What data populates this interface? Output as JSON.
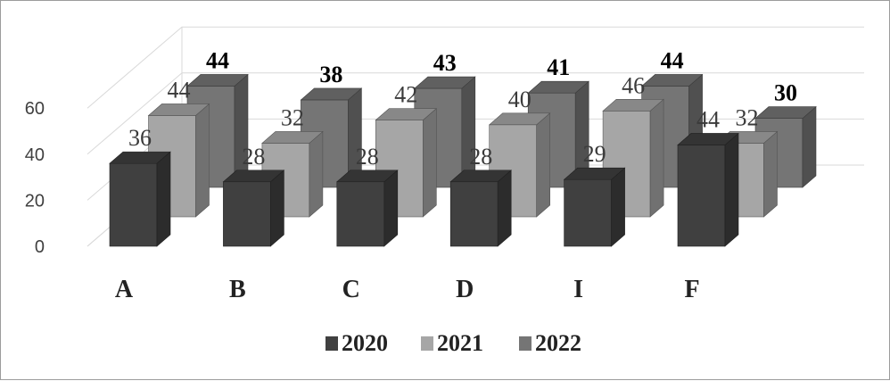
{
  "chart_data": {
    "type": "bar",
    "style": "3d-clustered-depth",
    "categories": [
      "A",
      "B",
      "C",
      "D",
      "I",
      "F"
    ],
    "series": [
      {
        "name": "2020",
        "values": [
          36,
          28,
          28,
          28,
          29,
          44
        ],
        "color": "#404040",
        "label_color": "#3a3a3a",
        "label_weight": "normal"
      },
      {
        "name": "2021",
        "values": [
          44,
          32,
          42,
          40,
          46,
          32
        ],
        "color": "#a6a6a6",
        "label_color": "#3a3a3a",
        "label_weight": "normal"
      },
      {
        "name": "2022",
        "values": [
          44,
          38,
          43,
          41,
          44,
          30
        ],
        "color": "#757575",
        "label_color": "#000000",
        "label_weight": "bold"
      }
    ],
    "y_ticks": [
      "0",
      "20",
      "40",
      "60"
    ],
    "ylim": [
      0,
      60
    ],
    "grid": true,
    "legend_position": "bottom"
  }
}
